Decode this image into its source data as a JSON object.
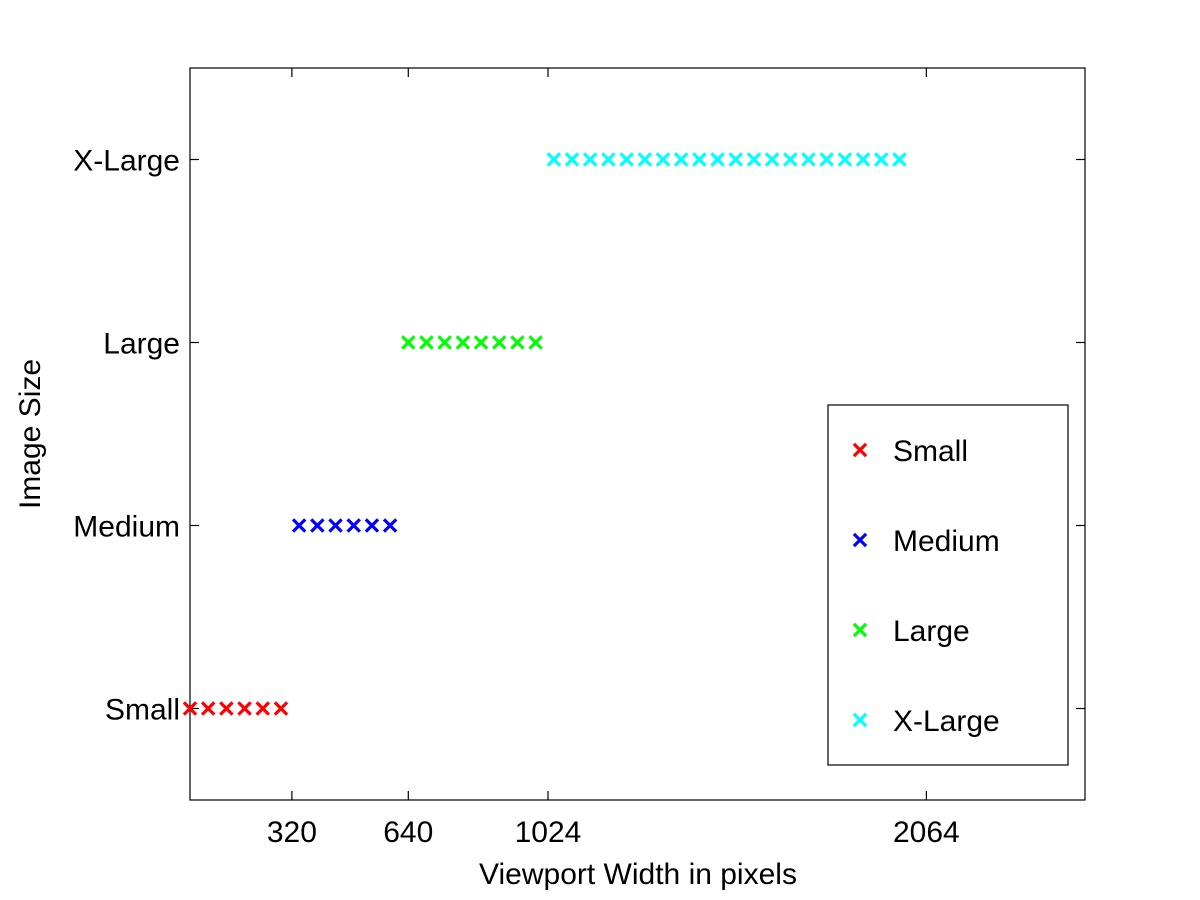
{
  "chart_data": {
    "type": "scatter",
    "title": "",
    "xlabel": "Viewport Width in pixels",
    "ylabel": "Image Size",
    "xlim": [
      40,
      2500
    ],
    "xticks": [
      320,
      640,
      1024,
      2064
    ],
    "ylim": [
      0.5,
      4.5
    ],
    "yticks": [
      1,
      2,
      3,
      4
    ],
    "ytick_labels": [
      "Small",
      "Medium",
      "Large",
      "X-Large"
    ],
    "grid": false,
    "marker": "x",
    "legend": {
      "position": "bottom-right",
      "entries": [
        "Small",
        "Medium",
        "Large",
        "X-Large"
      ]
    },
    "series": [
      {
        "name": "Small",
        "color": "#ff0000",
        "y": 1,
        "x": [
          40,
          90,
          140,
          190,
          240,
          290
        ]
      },
      {
        "name": "Medium",
        "color": "#0000ff",
        "y": 2,
        "x": [
          340,
          390,
          440,
          490,
          540,
          590
        ]
      },
      {
        "name": "Large",
        "color": "#00ff00",
        "y": 3,
        "x": [
          640,
          690,
          740,
          790,
          840,
          890,
          940,
          990
        ]
      },
      {
        "name": "X-Large",
        "color": "#00ffff",
        "y": 4,
        "x": [
          1040,
          1090,
          1140,
          1190,
          1240,
          1290,
          1340,
          1390,
          1440,
          1490,
          1540,
          1590,
          1640,
          1690,
          1740,
          1790,
          1840,
          1890,
          1940,
          1990
        ]
      }
    ]
  }
}
